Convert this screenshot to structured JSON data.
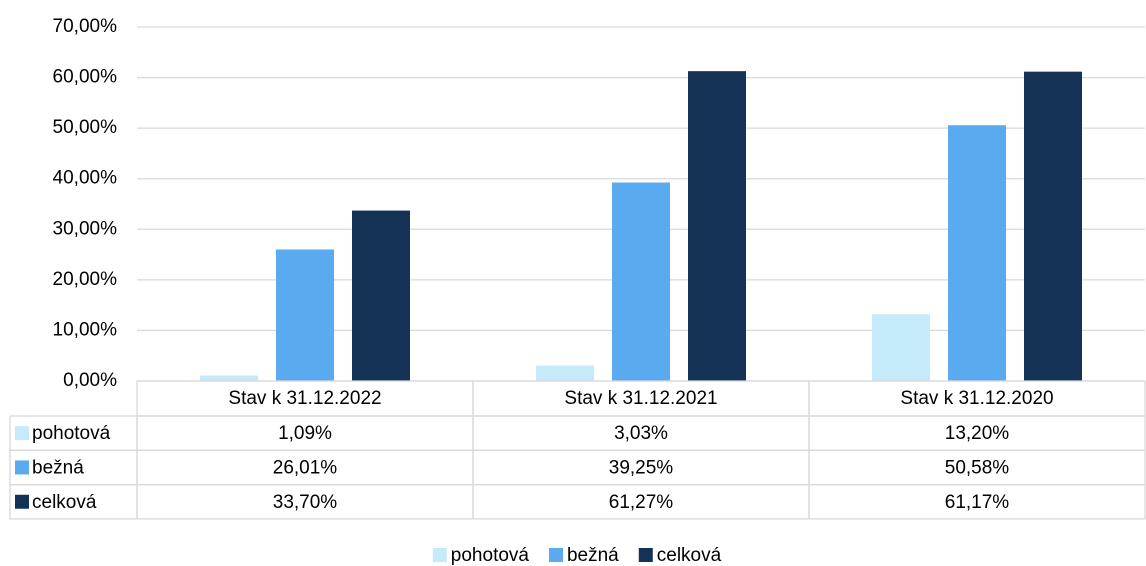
{
  "chart_data": {
    "type": "bar",
    "categories": [
      "Stav k 31.12.2022",
      "Stav k 31.12.2021",
      "Stav k 31.12.2020"
    ],
    "series": [
      {
        "name": "pohotová",
        "color": "#c5eafa",
        "values": [
          1.09,
          3.03,
          13.2
        ],
        "value_labels": [
          "1,09%",
          "3,03%",
          "13,20%"
        ]
      },
      {
        "name": "bežná",
        "color": "#5aaaf0",
        "values": [
          26.01,
          39.25,
          50.58
        ],
        "value_labels": [
          "26,01%",
          "39,25%",
          "50,58%"
        ]
      },
      {
        "name": "celková",
        "color": "#133255",
        "values": [
          33.7,
          61.27,
          61.17
        ],
        "value_labels": [
          "33,70%",
          "61,27%",
          "61,17%"
        ]
      }
    ],
    "ylim": [
      0,
      70
    ],
    "yticks": [
      {
        "value": 0,
        "label": "0,00%"
      },
      {
        "value": 10,
        "label": "10,00%"
      },
      {
        "value": 20,
        "label": "20,00%"
      },
      {
        "value": 30,
        "label": "30,00%"
      },
      {
        "value": 40,
        "label": "40,00%"
      },
      {
        "value": 50,
        "label": "50,00%"
      },
      {
        "value": 60,
        "label": "60,00%"
      },
      {
        "value": 70,
        "label": "70,00%"
      }
    ],
    "grid": true,
    "legend": "bottom"
  }
}
